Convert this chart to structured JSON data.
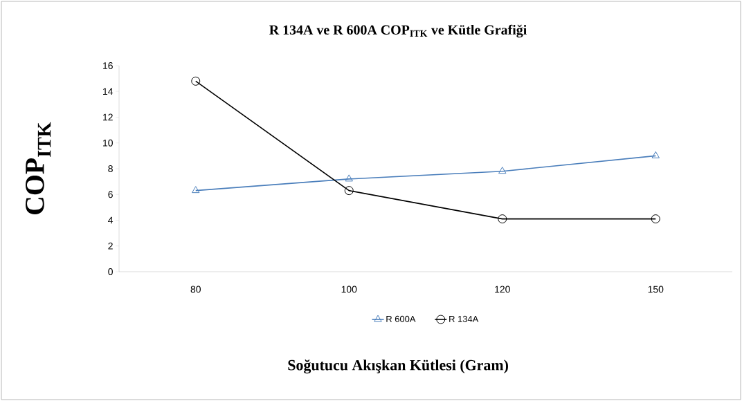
{
  "chart_data": {
    "type": "line",
    "title": "R 134A ve R 600A  COP$_{ITK}$ ve Kütle Grafiği",
    "xlabel": "Soğutucu Akışkan Kütlesi (Gram)",
    "ylabel": "COP$_{ITK}$",
    "categories": [
      "80",
      "100",
      "120",
      "150"
    ],
    "series": [
      {
        "name": "R 600A",
        "color": "#4a7ebb",
        "marker": "triangle",
        "values": [
          6.3,
          7.2,
          7.8,
          9.0
        ]
      },
      {
        "name": "R 134A",
        "color": "#000000",
        "marker": "circle",
        "values": [
          14.8,
          6.3,
          4.1,
          4.1
        ]
      }
    ],
    "ylim": [
      0,
      16
    ],
    "yticks": [
      0,
      2,
      4,
      6,
      8,
      10,
      12,
      14,
      16
    ],
    "grid": false,
    "legend": "bottom",
    "line_style": "solid"
  }
}
